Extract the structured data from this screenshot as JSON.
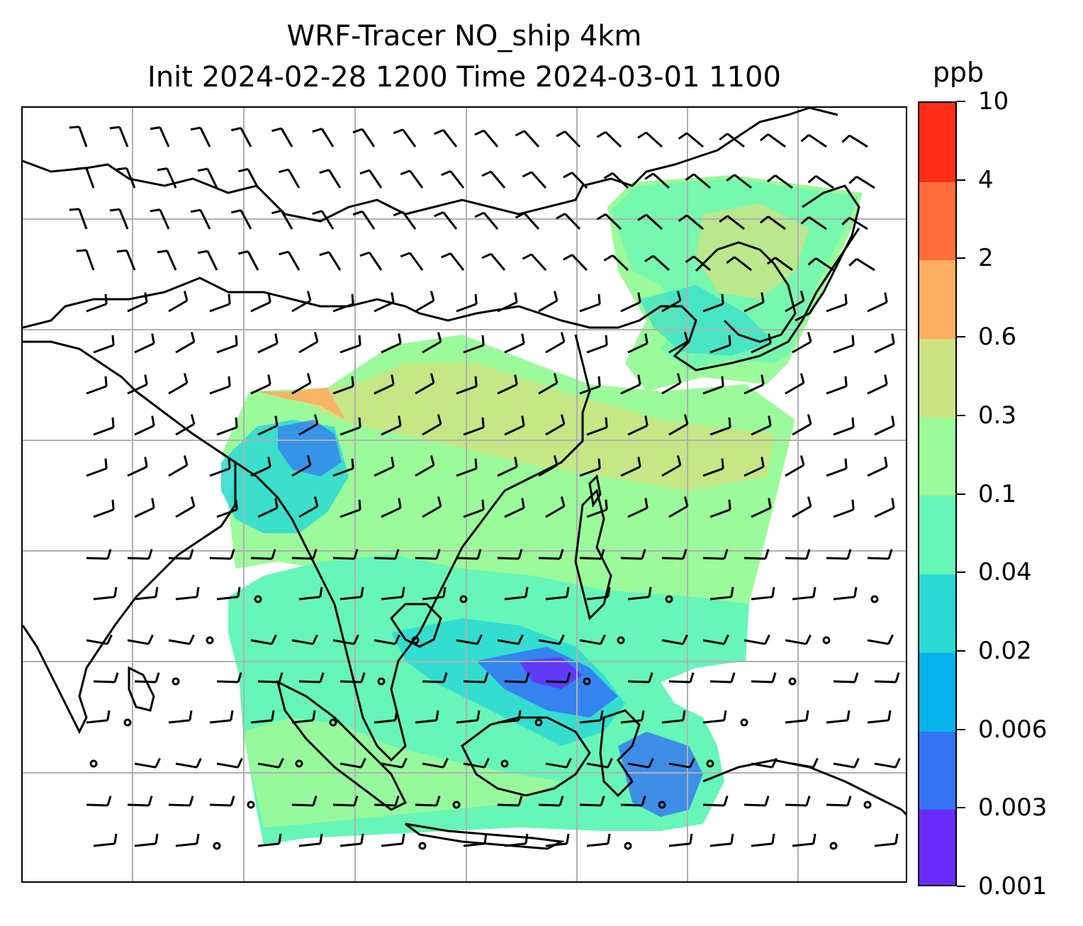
{
  "title_line1": "WRF-Tracer NO_ship 4km",
  "title_line2": "Init 2024-02-28 1200 Time 2024-03-01 1100",
  "colorbar": {
    "unit": "ppb",
    "levels": [
      "0.001",
      "0.003",
      "0.006",
      "0.02",
      "0.04",
      "0.1",
      "0.3",
      "0.6",
      "2",
      "4",
      "10"
    ],
    "colors": [
      "#6a2bfa",
      "#3474f4",
      "#06b2ec",
      "#2ad9d4",
      "#66f6b8",
      "#9bfb9a",
      "#cde383",
      "#fdae60",
      "#ff6e3a",
      "#ff2c16"
    ]
  },
  "colors": {
    "coastline": "#000000",
    "gridline": "#b0b0b0",
    "barb": "#000000"
  }
}
